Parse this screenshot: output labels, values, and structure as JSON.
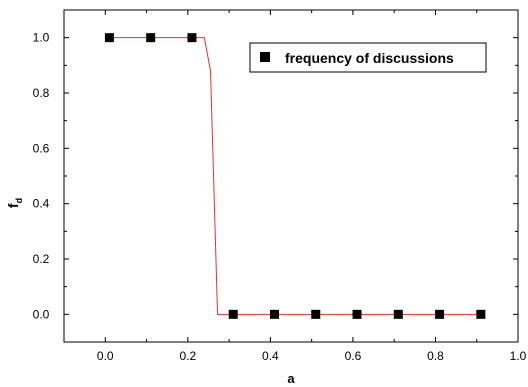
{
  "chart_data": {
    "type": "scatter",
    "xlabel": "a",
    "ylabel_main": "f",
    "ylabel_sub": "d",
    "xlim": [
      -0.1,
      1.0
    ],
    "ylim": [
      -0.1,
      1.1
    ],
    "xticks": [
      0.0,
      0.2,
      0.4,
      0.6,
      0.8,
      1.0
    ],
    "xtick_labels": [
      "0.0",
      "0.2",
      "0.4",
      "0.6",
      "0.8",
      "1.0"
    ],
    "yticks": [
      0.0,
      0.2,
      0.4,
      0.6,
      0.8,
      1.0
    ],
    "ytick_labels": [
      "0.0",
      "0.2",
      "0.4",
      "0.6",
      "0.8",
      "1.0"
    ],
    "grid": false,
    "legend_position": "top-right",
    "series": [
      {
        "name": "frequency of discussions",
        "marker": "square",
        "color": "#000000",
        "x": [
          0.01,
          0.11,
          0.21,
          0.31,
          0.41,
          0.51,
          0.61,
          0.71,
          0.81,
          0.91
        ],
        "y": [
          1.0,
          1.0,
          1.0,
          0.0,
          0.0,
          0.0,
          0.0,
          0.0,
          0.0,
          0.0
        ]
      }
    ],
    "fit_line": {
      "color": "#e8312a",
      "x": [
        0.01,
        0.24,
        0.255,
        0.272,
        0.91
      ],
      "y": [
        1.0,
        1.0,
        0.88,
        0.0,
        0.0
      ]
    }
  }
}
